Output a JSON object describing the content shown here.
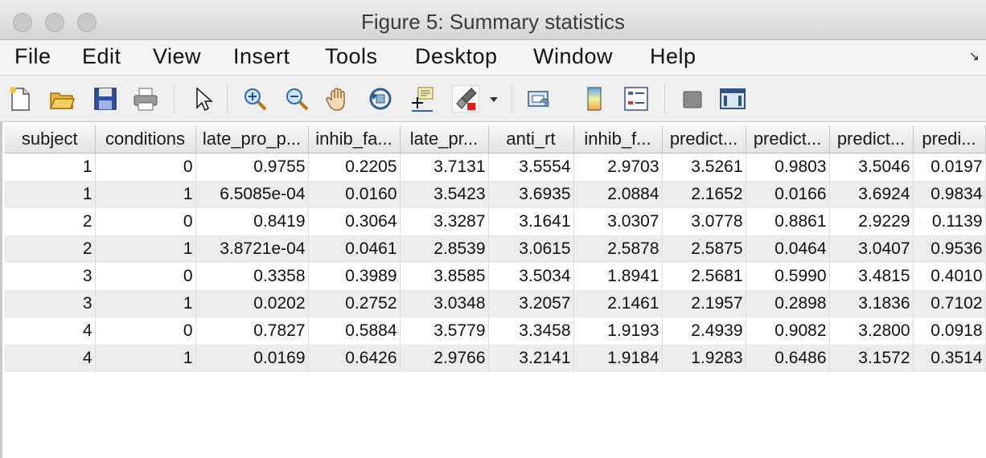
{
  "window": {
    "title": "Figure 5: Summary statistics"
  },
  "menu": {
    "items": [
      "File",
      "Edit",
      "View",
      "Insert",
      "Tools",
      "Desktop",
      "Window",
      "Help"
    ],
    "overflow_icon": "dock-arrow-icon"
  },
  "toolbar": {
    "icons": [
      "new-figure-icon",
      "open-file-icon",
      "save-icon",
      "print-icon",
      "edit-plot-pointer-icon",
      "zoom-in-icon",
      "zoom-out-icon",
      "pan-hand-icon",
      "rotate-3d-icon",
      "data-cursor-icon",
      "brush-icon",
      "brush-dropdown-icon",
      "link-plot-icon",
      "colorbar-icon",
      "legend-icon",
      "hide-plot-tools-icon",
      "show-plot-tools-icon"
    ],
    "brush_color": "#e0201b"
  },
  "table": {
    "columns": [
      "subject",
      "conditions",
      "late_pro_p...",
      "inhib_fa...",
      "late_pr...",
      "anti_rt",
      "inhib_f...",
      "predict...",
      "predict...",
      "predict...",
      "predi..."
    ],
    "rows": [
      [
        "1",
        "0",
        "0.9755",
        "0.2205",
        "3.7131",
        "3.5554",
        "2.9703",
        "3.5261",
        "0.9803",
        "3.5046",
        "0.0197"
      ],
      [
        "1",
        "1",
        "6.5085e-04",
        "0.0160",
        "3.5423",
        "3.6935",
        "2.0884",
        "2.1652",
        "0.0166",
        "3.6924",
        "0.9834"
      ],
      [
        "2",
        "0",
        "0.8419",
        "0.3064",
        "3.3287",
        "3.1641",
        "3.0307",
        "3.0778",
        "0.8861",
        "2.9229",
        "0.1139"
      ],
      [
        "2",
        "1",
        "3.8721e-04",
        "0.0461",
        "2.8539",
        "3.0615",
        "2.5878",
        "2.5875",
        "0.0464",
        "3.0407",
        "0.9536"
      ],
      [
        "3",
        "0",
        "0.3358",
        "0.3989",
        "3.8585",
        "3.5034",
        "1.8941",
        "2.5681",
        "0.5990",
        "3.4815",
        "0.4010"
      ],
      [
        "3",
        "1",
        "0.0202",
        "0.2752",
        "3.0348",
        "3.2057",
        "2.1461",
        "2.1957",
        "0.2898",
        "3.1836",
        "0.7102"
      ],
      [
        "4",
        "0",
        "0.7827",
        "0.5884",
        "3.5779",
        "3.3458",
        "1.9193",
        "2.4939",
        "0.9082",
        "3.2800",
        "0.0918"
      ],
      [
        "4",
        "1",
        "0.0169",
        "0.6426",
        "2.9766",
        "3.2141",
        "1.9184",
        "1.9283",
        "0.6486",
        "3.1572",
        "0.3514"
      ]
    ]
  }
}
